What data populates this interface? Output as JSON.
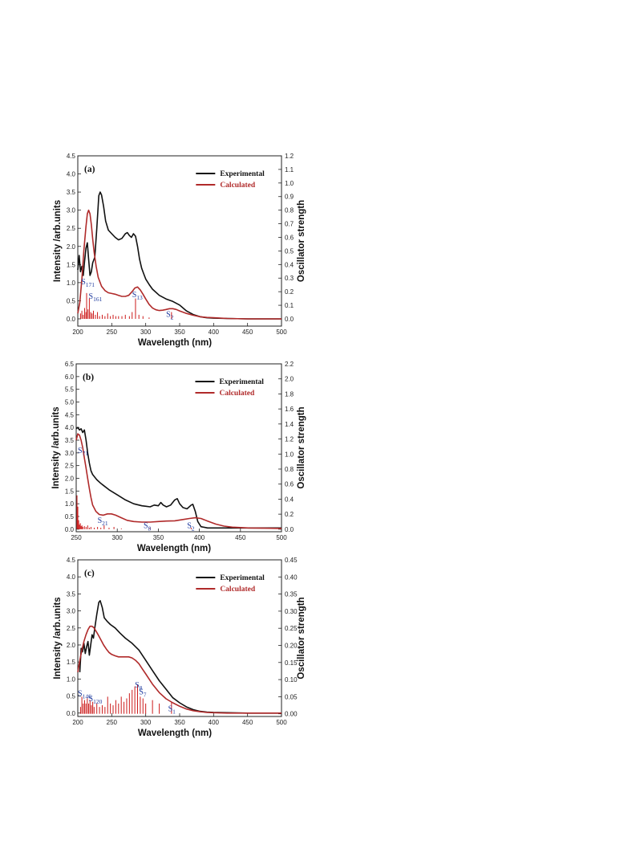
{
  "colors": {
    "experimental": "#111111",
    "calculated": "#b02a2a",
    "sticks": "#cc1a1a",
    "annotation": "#1e3a9e"
  },
  "chart_data": [
    {
      "type": "line",
      "panel_label": "(a)",
      "xlabel": "Wavelength (nm)",
      "ylabel": "Intensity /arb.units",
      "y2label": "Oscillator strength",
      "xlim": [
        200,
        500
      ],
      "ylim": [
        -0.2,
        4.5
      ],
      "y2lim": [
        -0.0533,
        1.2
      ],
      "xticks": [
        200,
        250,
        300,
        350,
        400,
        450,
        500
      ],
      "yticks": [
        "0.0",
        "0.5",
        "1.0",
        "1.5",
        "2.0",
        "2.5",
        "3.0",
        "3.5",
        "4.0",
        "4.5"
      ],
      "y2ticks": [
        "0.0",
        "0.1",
        "0.2",
        "0.3",
        "0.4",
        "0.5",
        "0.6",
        "0.7",
        "0.8",
        "0.9",
        "1.0",
        "1.1",
        "1.2"
      ],
      "legend": [
        "Experimental",
        "Calculated"
      ],
      "legend_position": "top-right",
      "series": [
        {
          "name": "Experimental",
          "x": [
            200,
            202,
            204,
            206,
            208,
            210,
            212,
            214,
            216,
            218,
            220,
            222,
            225,
            228,
            231,
            233,
            235,
            238,
            241,
            245,
            250,
            255,
            260,
            265,
            270,
            273,
            276,
            279,
            282,
            285,
            288,
            291,
            294,
            297,
            300,
            305,
            310,
            320,
            330,
            340,
            350,
            360,
            370,
            380,
            390,
            400,
            420,
            450,
            500
          ],
          "y": [
            1.35,
            1.75,
            1.3,
            1.45,
            1.2,
            1.6,
            1.95,
            2.1,
            1.65,
            1.2,
            1.3,
            1.55,
            1.7,
            2.5,
            3.4,
            3.5,
            3.42,
            3.1,
            2.7,
            2.45,
            2.35,
            2.25,
            2.18,
            2.22,
            2.35,
            2.38,
            2.3,
            2.25,
            2.35,
            2.28,
            2.0,
            1.65,
            1.4,
            1.25,
            1.1,
            0.95,
            0.82,
            0.65,
            0.55,
            0.48,
            0.38,
            0.22,
            0.12,
            0.06,
            0.03,
            0.02,
            0.01,
            0.0,
            0.0
          ]
        },
        {
          "name": "Calculated",
          "x": [
            200,
            203,
            206,
            209,
            212,
            214,
            216,
            218,
            220,
            222,
            224,
            227,
            230,
            235,
            240,
            245,
            250,
            255,
            260,
            265,
            270,
            275,
            280,
            284,
            288,
            292,
            296,
            300,
            305,
            310,
            315,
            320,
            325,
            330,
            335,
            340,
            345,
            350,
            360,
            370,
            380,
            390,
            400,
            420,
            450,
            500
          ],
          "y": [
            0.15,
            0.45,
            1.1,
            1.9,
            2.55,
            2.9,
            3.0,
            2.9,
            2.6,
            2.2,
            1.85,
            1.45,
            1.15,
            0.9,
            0.78,
            0.72,
            0.7,
            0.68,
            0.65,
            0.62,
            0.62,
            0.65,
            0.75,
            0.85,
            0.88,
            0.8,
            0.68,
            0.55,
            0.4,
            0.3,
            0.25,
            0.23,
            0.24,
            0.26,
            0.28,
            0.28,
            0.26,
            0.22,
            0.15,
            0.1,
            0.06,
            0.04,
            0.03,
            0.01,
            0.0,
            0.0
          ]
        }
      ],
      "sticks": [
        {
          "x": 204,
          "f": 0.04
        },
        {
          "x": 206,
          "f": 0.06
        },
        {
          "x": 208,
          "f": 0.03
        },
        {
          "x": 210,
          "f": 0.08
        },
        {
          "x": 212,
          "f": 0.05
        },
        {
          "x": 213,
          "f": 0.19
        },
        {
          "x": 215,
          "f": 0.07
        },
        {
          "x": 217,
          "f": 0.15
        },
        {
          "x": 219,
          "f": 0.05
        },
        {
          "x": 221,
          "f": 0.04
        },
        {
          "x": 223,
          "f": 0.06
        },
        {
          "x": 226,
          "f": 0.03
        },
        {
          "x": 229,
          "f": 0.05
        },
        {
          "x": 232,
          "f": 0.02
        },
        {
          "x": 236,
          "f": 0.03
        },
        {
          "x": 240,
          "f": 0.02
        },
        {
          "x": 244,
          "f": 0.04
        },
        {
          "x": 248,
          "f": 0.02
        },
        {
          "x": 252,
          "f": 0.03
        },
        {
          "x": 256,
          "f": 0.02
        },
        {
          "x": 260,
          "f": 0.02
        },
        {
          "x": 265,
          "f": 0.02
        },
        {
          "x": 270,
          "f": 0.03
        },
        {
          "x": 276,
          "f": 0.02
        },
        {
          "x": 280,
          "f": 0.05
        },
        {
          "x": 285,
          "f": 0.15
        },
        {
          "x": 290,
          "f": 0.03
        },
        {
          "x": 296,
          "f": 0.02
        },
        {
          "x": 305,
          "f": 0.01
        },
        {
          "x": 338,
          "f": 0.05
        }
      ],
      "annotations": [
        {
          "base": "S",
          "sub": "171",
          "x": 205,
          "y": 0.95
        },
        {
          "base": "S",
          "sub": "161",
          "x": 216,
          "y": 0.55
        },
        {
          "base": "S",
          "sub": "13",
          "x": 280,
          "y": 0.6
        },
        {
          "base": "S",
          "sub": "2",
          "x": 330,
          "y": 0.05
        }
      ]
    },
    {
      "type": "line",
      "panel_label": "(b)",
      "xlabel": "Wavelength (nm)",
      "ylabel": "Intensity /arb.units",
      "y2label": "Oscillator strength",
      "xlim": [
        250,
        500
      ],
      "ylim": [
        -0.1,
        6.5
      ],
      "y2lim": [
        -0.0338,
        2.2
      ],
      "xticks": [
        250,
        300,
        350,
        400,
        450,
        500
      ],
      "yticks": [
        "0.0",
        "0.5",
        "1.0",
        "1.5",
        "2.0",
        "2.5",
        "3.0",
        "3.5",
        "4.0",
        "4.5",
        "5.0",
        "5.5",
        "6.0",
        "6.5"
      ],
      "y2ticks": [
        "0.0",
        "0.2",
        "0.4",
        "0.6",
        "0.8",
        "1.0",
        "1.2",
        "1.4",
        "1.6",
        "1.8",
        "2.0",
        "2.2"
      ],
      "legend": [
        "Experimental",
        "Calculated"
      ],
      "legend_position": "top-right",
      "series": [
        {
          "name": "Experimental",
          "x": [
            250,
            252,
            254,
            256,
            258,
            260,
            262,
            264,
            266,
            268,
            270,
            275,
            280,
            290,
            300,
            310,
            320,
            330,
            335,
            340,
            345,
            350,
            353,
            356,
            360,
            365,
            370,
            373,
            376,
            380,
            385,
            390,
            392,
            395,
            398,
            402,
            410,
            430,
            460,
            500
          ],
          "y": [
            3.95,
            4.0,
            3.9,
            3.95,
            3.8,
            3.9,
            3.5,
            3.0,
            2.6,
            2.3,
            2.15,
            1.95,
            1.8,
            1.55,
            1.35,
            1.15,
            1.0,
            0.92,
            0.9,
            0.88,
            0.95,
            0.92,
            1.05,
            0.95,
            0.88,
            0.95,
            1.15,
            1.2,
            1.0,
            0.85,
            0.8,
            0.95,
            0.98,
            0.7,
            0.3,
            0.1,
            0.05,
            0.05,
            0.05,
            0.05
          ]
        },
        {
          "name": "Calculated",
          "x": [
            250,
            252,
            254,
            256,
            258,
            260,
            262,
            264,
            266,
            268,
            270,
            274,
            278,
            283,
            288,
            293,
            298,
            305,
            312,
            320,
            330,
            340,
            350,
            360,
            370,
            380,
            388,
            395,
            402,
            410,
            420,
            430,
            440,
            460,
            480,
            500
          ],
          "y": [
            3.5,
            3.75,
            3.7,
            3.5,
            3.2,
            2.8,
            2.4,
            2.0,
            1.6,
            1.25,
            0.95,
            0.7,
            0.58,
            0.55,
            0.6,
            0.6,
            0.55,
            0.45,
            0.35,
            0.3,
            0.28,
            0.28,
            0.3,
            0.32,
            0.33,
            0.38,
            0.42,
            0.45,
            0.42,
            0.32,
            0.2,
            0.12,
            0.08,
            0.05,
            0.04,
            0.03
          ]
        }
      ],
      "sticks": [
        {
          "x": 251,
          "f": 0.45
        },
        {
          "x": 252,
          "f": 0.3
        },
        {
          "x": 253,
          "f": 0.12
        },
        {
          "x": 254,
          "f": 0.06
        },
        {
          "x": 255,
          "f": 0.08
        },
        {
          "x": 256,
          "f": 0.04
        },
        {
          "x": 257,
          "f": 0.05
        },
        {
          "x": 258,
          "f": 0.03
        },
        {
          "x": 260,
          "f": 0.04
        },
        {
          "x": 262,
          "f": 0.03
        },
        {
          "x": 264,
          "f": 0.05
        },
        {
          "x": 266,
          "f": 0.02
        },
        {
          "x": 268,
          "f": 0.03
        },
        {
          "x": 272,
          "f": 0.02
        },
        {
          "x": 276,
          "f": 0.03
        },
        {
          "x": 280,
          "f": 0.02
        },
        {
          "x": 284,
          "f": 0.05
        },
        {
          "x": 290,
          "f": 0.02
        },
        {
          "x": 296,
          "f": 0.03
        },
        {
          "x": 305,
          "f": 0.01
        },
        {
          "x": 340,
          "f": 0.02
        },
        {
          "x": 390,
          "f": 0.02
        }
      ],
      "annotations": [
        {
          "base": "S",
          "sub": "71",
          "x": 252,
          "y": 3.0
        },
        {
          "base": "S",
          "sub": "21",
          "x": 276,
          "y": 0.25
        },
        {
          "base": "S",
          "sub": "8",
          "x": 332,
          "y": 0.05
        },
        {
          "base": "S",
          "sub": "2",
          "x": 385,
          "y": 0.05
        }
      ]
    },
    {
      "type": "line",
      "panel_label": "(c)",
      "xlabel": "Wavelength (nm)",
      "ylabel": "Intensity /arb.units",
      "y2label": "Oscillator strength",
      "xlim": [
        200,
        500
      ],
      "ylim": [
        -0.1,
        4.5
      ],
      "y2lim": [
        -0.0078,
        0.45
      ],
      "xticks": [
        200,
        250,
        300,
        350,
        400,
        450,
        500
      ],
      "yticks": [
        "0.0",
        "0.5",
        "1.0",
        "1.5",
        "2.0",
        "2.5",
        "3.0",
        "3.5",
        "4.0",
        "4.5"
      ],
      "y2ticks": [
        "0.00",
        "0.05",
        "0.10",
        "0.15",
        "0.20",
        "0.25",
        "0.30",
        "0.35",
        "0.40",
        "0.45"
      ],
      "legend": [
        "Experimental",
        "Calculated"
      ],
      "legend_position": "top-right",
      "series": [
        {
          "name": "Experimental",
          "x": [
            203,
            205,
            207,
            209,
            211,
            213,
            215,
            217,
            219,
            221,
            223,
            225,
            228,
            231,
            233,
            236,
            239,
            243,
            248,
            255,
            262,
            270,
            280,
            290,
            300,
            310,
            320,
            330,
            340,
            350,
            360,
            370,
            380,
            390,
            400,
            420,
            450,
            500
          ],
          "y": [
            1.2,
            1.9,
            1.8,
            2.05,
            1.75,
            1.95,
            2.1,
            1.7,
            2.0,
            2.3,
            2.2,
            2.5,
            2.9,
            3.25,
            3.3,
            3.1,
            2.8,
            2.7,
            2.6,
            2.5,
            2.35,
            2.2,
            2.05,
            1.85,
            1.55,
            1.25,
            0.95,
            0.7,
            0.45,
            0.3,
            0.18,
            0.1,
            0.05,
            0.03,
            0.02,
            0.01,
            0.0,
            0.0
          ]
        },
        {
          "name": "Calculated",
          "x": [
            200,
            203,
            206,
            209,
            212,
            215,
            218,
            221,
            224,
            227,
            230,
            234,
            238,
            242,
            246,
            250,
            255,
            260,
            265,
            270,
            275,
            280,
            285,
            290,
            295,
            300,
            310,
            320,
            330,
            340,
            350,
            360,
            370,
            380,
            390,
            400,
            420,
            450,
            500
          ],
          "y": [
            1.2,
            1.55,
            1.85,
            2.1,
            2.3,
            2.45,
            2.55,
            2.55,
            2.5,
            2.4,
            2.3,
            2.15,
            2.0,
            1.88,
            1.78,
            1.72,
            1.68,
            1.65,
            1.65,
            1.65,
            1.65,
            1.62,
            1.55,
            1.45,
            1.3,
            1.15,
            0.85,
            0.6,
            0.42,
            0.3,
            0.2,
            0.12,
            0.07,
            0.04,
            0.02,
            0.01,
            0.0,
            0.0,
            0.0
          ]
        }
      ],
      "sticks": [
        {
          "x": 204,
          "f": 0.02
        },
        {
          "x": 206,
          "f": 0.05
        },
        {
          "x": 208,
          "f": 0.03
        },
        {
          "x": 210,
          "f": 0.04
        },
        {
          "x": 212,
          "f": 0.03
        },
        {
          "x": 214,
          "f": 0.045
        },
        {
          "x": 216,
          "f": 0.03
        },
        {
          "x": 218,
          "f": 0.04
        },
        {
          "x": 220,
          "f": 0.025
        },
        {
          "x": 222,
          "f": 0.035
        },
        {
          "x": 224,
          "f": 0.02
        },
        {
          "x": 228,
          "f": 0.03
        },
        {
          "x": 232,
          "f": 0.02
        },
        {
          "x": 236,
          "f": 0.025
        },
        {
          "x": 240,
          "f": 0.02
        },
        {
          "x": 244,
          "f": 0.05
        },
        {
          "x": 248,
          "f": 0.03
        },
        {
          "x": 252,
          "f": 0.025
        },
        {
          "x": 256,
          "f": 0.04
        },
        {
          "x": 260,
          "f": 0.03
        },
        {
          "x": 264,
          "f": 0.05
        },
        {
          "x": 268,
          "f": 0.035
        },
        {
          "x": 272,
          "f": 0.045
        },
        {
          "x": 276,
          "f": 0.06
        },
        {
          "x": 280,
          "f": 0.07
        },
        {
          "x": 284,
          "f": 0.08
        },
        {
          "x": 288,
          "f": 0.085
        },
        {
          "x": 292,
          "f": 0.05
        },
        {
          "x": 296,
          "f": 0.045
        },
        {
          "x": 300,
          "f": 0.03
        },
        {
          "x": 310,
          "f": 0.04
        },
        {
          "x": 320,
          "f": 0.03
        },
        {
          "x": 338,
          "f": 0.035
        }
      ],
      "annotations": [
        {
          "base": "S",
          "sub": "146",
          "x": 200,
          "y": 0.5
        },
        {
          "base": "S",
          "sub": "120",
          "x": 216,
          "y": 0.35
        },
        {
          "base": "S",
          "sub": "8",
          "x": 284,
          "y": 0.75
        },
        {
          "base": "S",
          "sub": "7",
          "x": 290,
          "y": 0.55
        },
        {
          "base": "S",
          "sub": "1",
          "x": 333,
          "y": 0.05
        }
      ]
    }
  ]
}
